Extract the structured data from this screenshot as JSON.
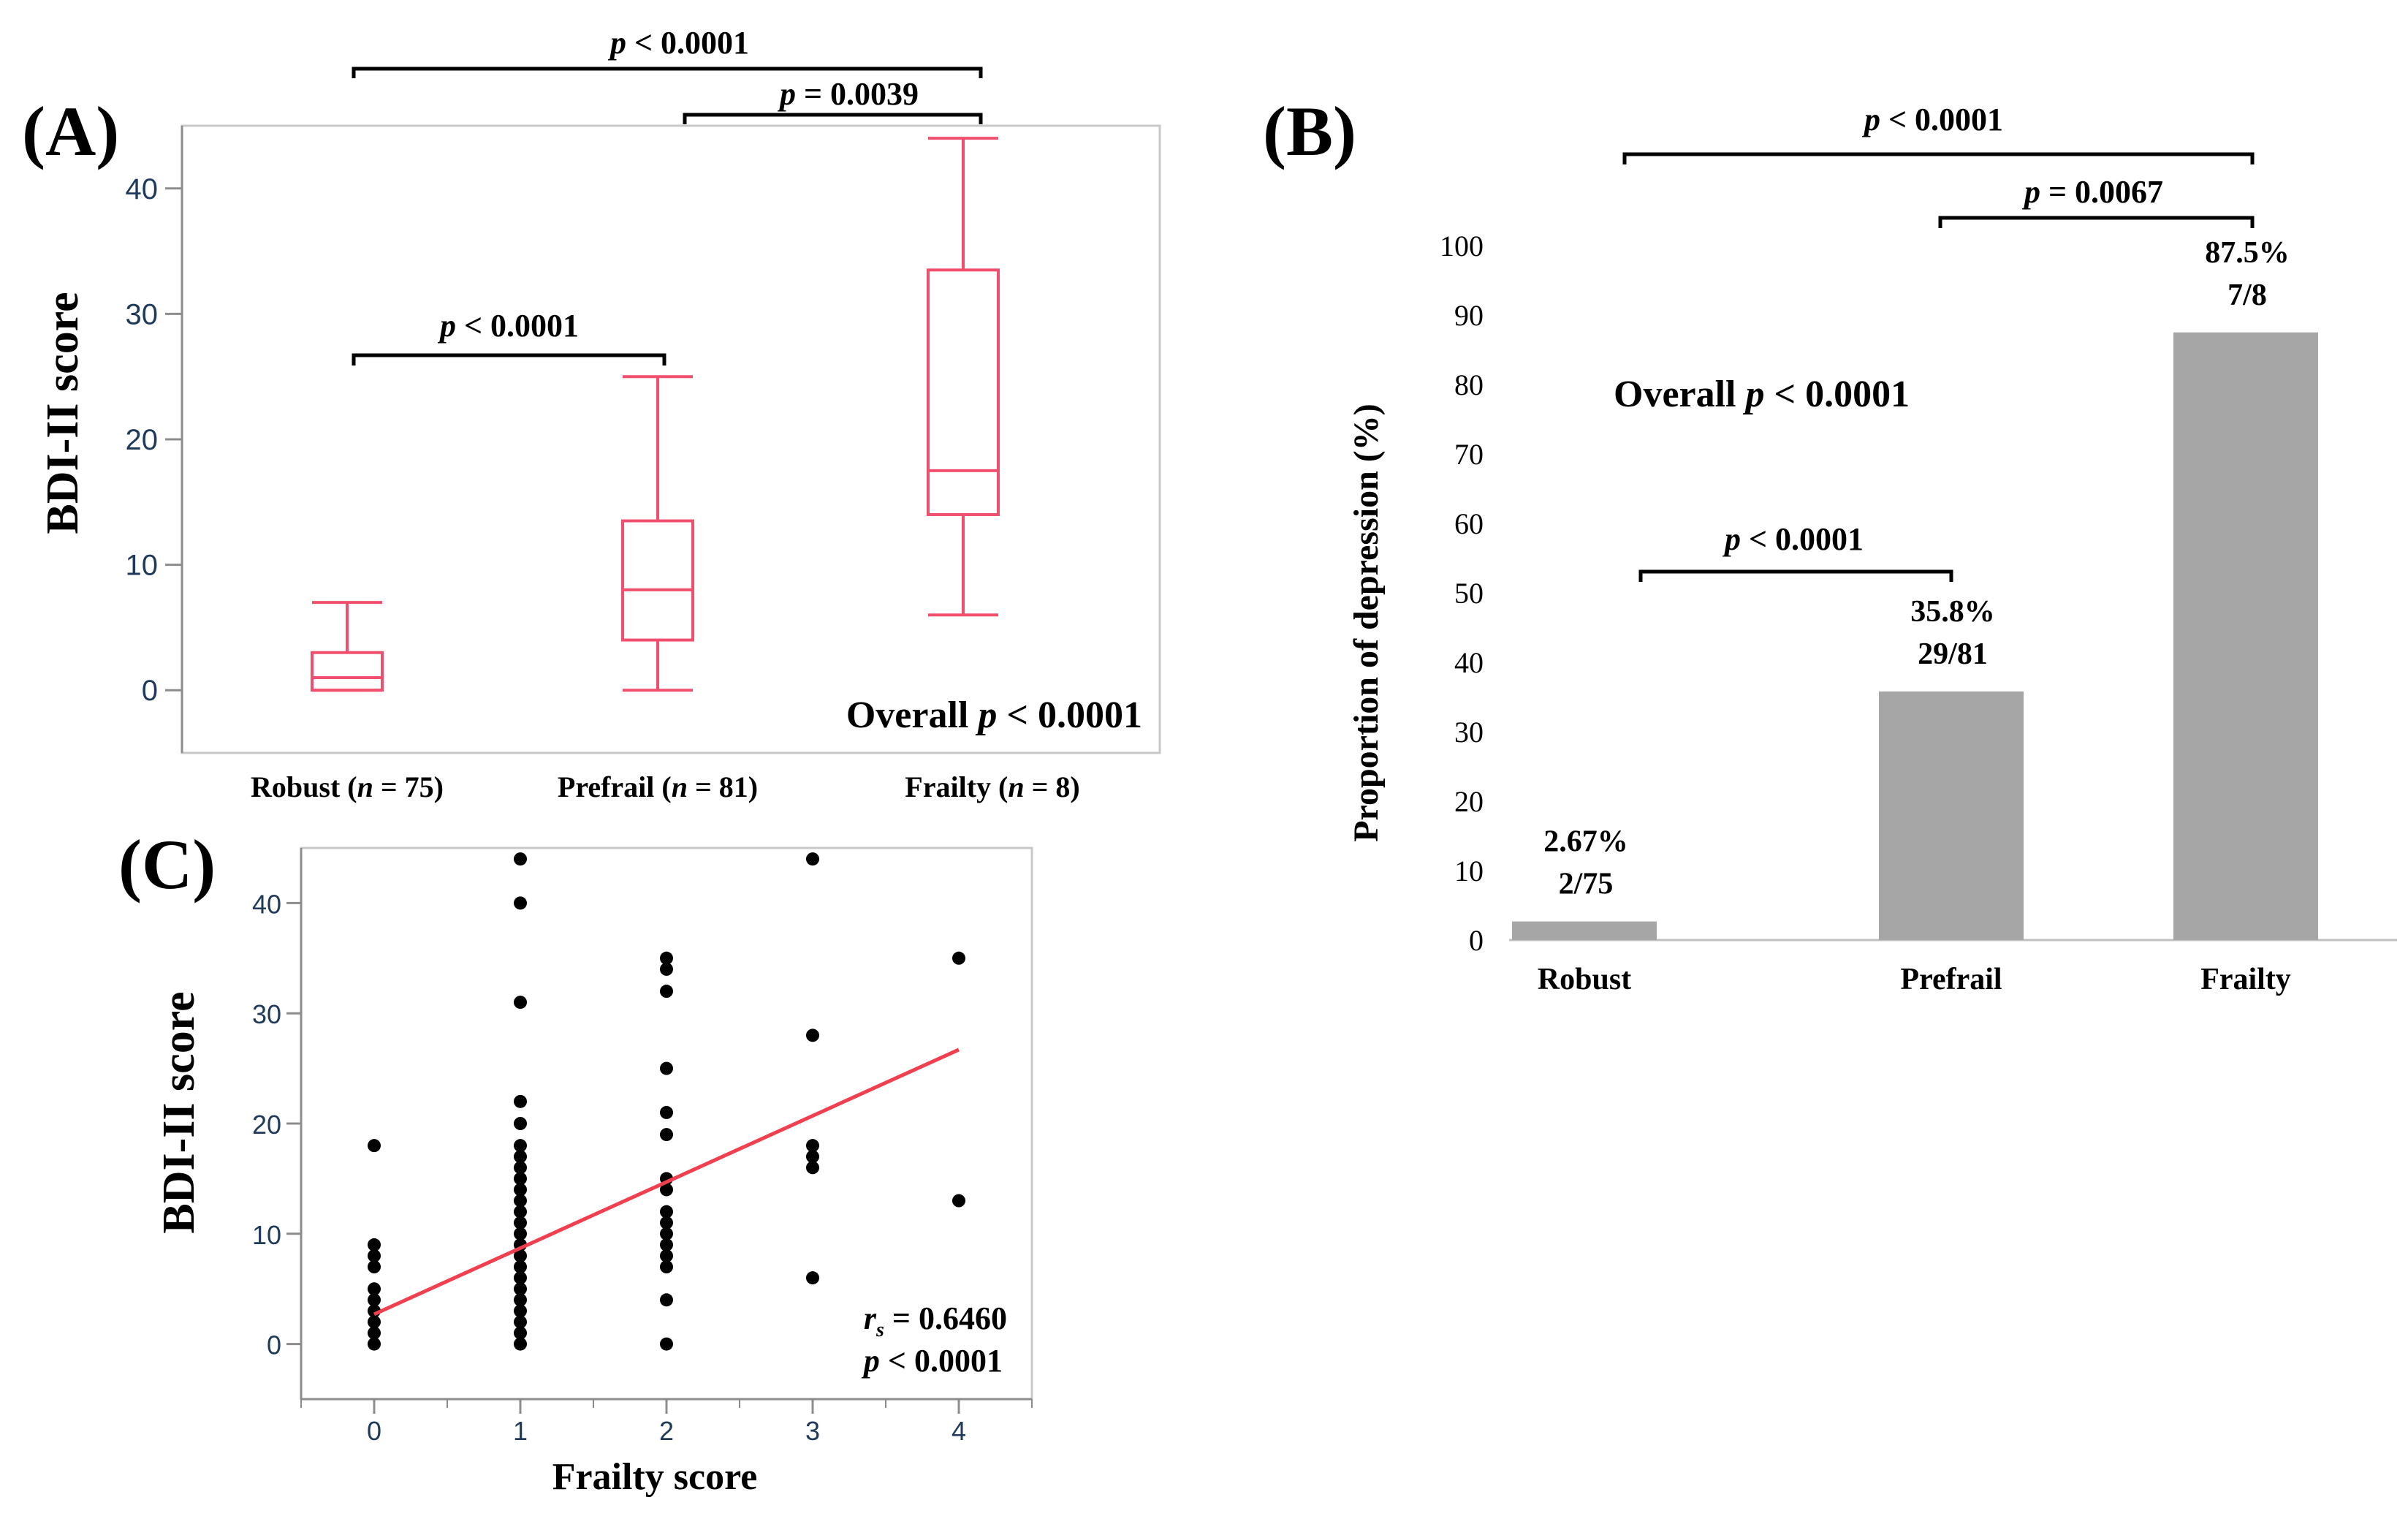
{
  "colors": {
    "box_stroke": "#f0506e",
    "bar_fill": "#a6a6a6",
    "scatter_point": "#000000",
    "regression_line": "#f04050",
    "tick_text_a_c": "#1f3a5a",
    "axis_gray": "#8c8c8c",
    "text": "#000000"
  },
  "panels": {
    "a": {
      "label": "(A)",
      "ylabel": "BDI-II score",
      "overall_prefix": "Overall ",
      "overall_p": "p",
      "overall_rest": " < 0.0001",
      "groups": [
        {
          "pre": "Robust (",
          "n": "n",
          "post": " = 75)"
        },
        {
          "pre": "Prefrail (",
          "n": "n",
          "post": " = 81)"
        },
        {
          "pre": "Frailty (",
          "n": "n",
          "post": " = 8)"
        }
      ],
      "brackets": [
        {
          "p": "p",
          "text": " < 0.0001"
        },
        {
          "p": "p",
          "text": " = 0.0039"
        },
        {
          "p": "p",
          "text": " < 0.0001"
        }
      ]
    },
    "b": {
      "label": "(B)",
      "ylabel": "Proportion of depression (%)",
      "overall_prefix": "Overall ",
      "overall_p": "p",
      "overall_rest": " < 0.0001",
      "bar_labels": [
        {
          "pct": "2.67%",
          "frac": "2/75"
        },
        {
          "pct": "35.8%",
          "frac": "29/81"
        },
        {
          "pct": "87.5%",
          "frac": "7/8"
        }
      ],
      "brackets": [
        {
          "p": "p",
          "text": " < 0.0001"
        },
        {
          "p": "p",
          "text": " = 0.0067"
        },
        {
          "p": "p",
          "text": " < 0.0001"
        }
      ]
    },
    "c": {
      "label": "(C)",
      "ylabel": "BDI-II score",
      "xlabel": "Frailty score",
      "rs_r": "r",
      "rs_sub": "s",
      "rs_rest": " = 0.6460",
      "p": "p",
      "p_rest": " < 0.0001"
    }
  },
  "chart_data": [
    {
      "panel": "A",
      "type": "box",
      "ylabel": "BDI-II score",
      "categories": [
        "Robust (n = 75)",
        "Prefrail (n = 81)",
        "Frailty (n = 8)"
      ],
      "boxes": [
        {
          "min": 0,
          "q1": 0,
          "median": 1,
          "q3": 3,
          "max": 7
        },
        {
          "min": 0,
          "q1": 4,
          "median": 8,
          "q3": 13.5,
          "max": 25
        },
        {
          "min": 6,
          "q1": 14,
          "median": 17.5,
          "q3": 33.5,
          "max": 44
        }
      ],
      "ylim": [
        -5,
        45
      ],
      "yticks": [
        0,
        10,
        20,
        30,
        40
      ],
      "comparisons": [
        {
          "from": 0,
          "to": 1,
          "p": "p < 0.0001"
        },
        {
          "from": 1,
          "to": 2,
          "p": "p = 0.0039"
        },
        {
          "from": 0,
          "to": 2,
          "p": "p < 0.0001"
        }
      ],
      "overall": "Overall p < 0.0001"
    },
    {
      "panel": "B",
      "type": "bar",
      "ylabel": "Proportion of depression (%)",
      "categories": [
        "Robust",
        "Prefrail",
        "Frailty"
      ],
      "values": [
        2.67,
        35.8,
        87.5
      ],
      "ylim": [
        0,
        100
      ],
      "yticks": [
        0,
        10,
        20,
        30,
        40,
        50,
        60,
        70,
        80,
        90,
        100
      ],
      "comparisons": [
        {
          "from": 0,
          "to": 1,
          "p": "p < 0.0001"
        },
        {
          "from": 1,
          "to": 2,
          "p": "p = 0.0067"
        },
        {
          "from": 0,
          "to": 2,
          "p": "p < 0.0001"
        }
      ],
      "overall": "Overall p < 0.0001"
    },
    {
      "panel": "C",
      "type": "scatter",
      "xlabel": "Frailty score",
      "ylabel": "BDI-II score",
      "xlim": [
        -0.5,
        4.5
      ],
      "ylim": [
        -5,
        45
      ],
      "xticks": [
        0,
        1,
        2,
        3,
        4
      ],
      "yticks": [
        0,
        10,
        20,
        30,
        40
      ],
      "points": [
        [
          0,
          0
        ],
        [
          0,
          1
        ],
        [
          0,
          2
        ],
        [
          0,
          3
        ],
        [
          0,
          4
        ],
        [
          0,
          5
        ],
        [
          0,
          7
        ],
        [
          0,
          8
        ],
        [
          0,
          9
        ],
        [
          0,
          18
        ],
        [
          1,
          0
        ],
        [
          1,
          1
        ],
        [
          1,
          2
        ],
        [
          1,
          3
        ],
        [
          1,
          4
        ],
        [
          1,
          5
        ],
        [
          1,
          6
        ],
        [
          1,
          7
        ],
        [
          1,
          8
        ],
        [
          1,
          9
        ],
        [
          1,
          10
        ],
        [
          1,
          11
        ],
        [
          1,
          12
        ],
        [
          1,
          13
        ],
        [
          1,
          14
        ],
        [
          1,
          15
        ],
        [
          1,
          16
        ],
        [
          1,
          17
        ],
        [
          1,
          18
        ],
        [
          1,
          20
        ],
        [
          1,
          22
        ],
        [
          1,
          31
        ],
        [
          1,
          40
        ],
        [
          1,
          44
        ],
        [
          2,
          0
        ],
        [
          2,
          4
        ],
        [
          2,
          7
        ],
        [
          2,
          8
        ],
        [
          2,
          9
        ],
        [
          2,
          10
        ],
        [
          2,
          11
        ],
        [
          2,
          12
        ],
        [
          2,
          14
        ],
        [
          2,
          15
        ],
        [
          2,
          19
        ],
        [
          2,
          21
        ],
        [
          2,
          25
        ],
        [
          2,
          32
        ],
        [
          2,
          34
        ],
        [
          2,
          35
        ],
        [
          3,
          6
        ],
        [
          3,
          16
        ],
        [
          3,
          17
        ],
        [
          3,
          18
        ],
        [
          3,
          28
        ],
        [
          3,
          44
        ],
        [
          4,
          13
        ],
        [
          4,
          35
        ]
      ],
      "regression": {
        "x": [
          0,
          4
        ],
        "y": [
          2.7,
          26.7
        ]
      },
      "rs": "rs = 0.6460",
      "p": "p < 0.0001"
    }
  ]
}
